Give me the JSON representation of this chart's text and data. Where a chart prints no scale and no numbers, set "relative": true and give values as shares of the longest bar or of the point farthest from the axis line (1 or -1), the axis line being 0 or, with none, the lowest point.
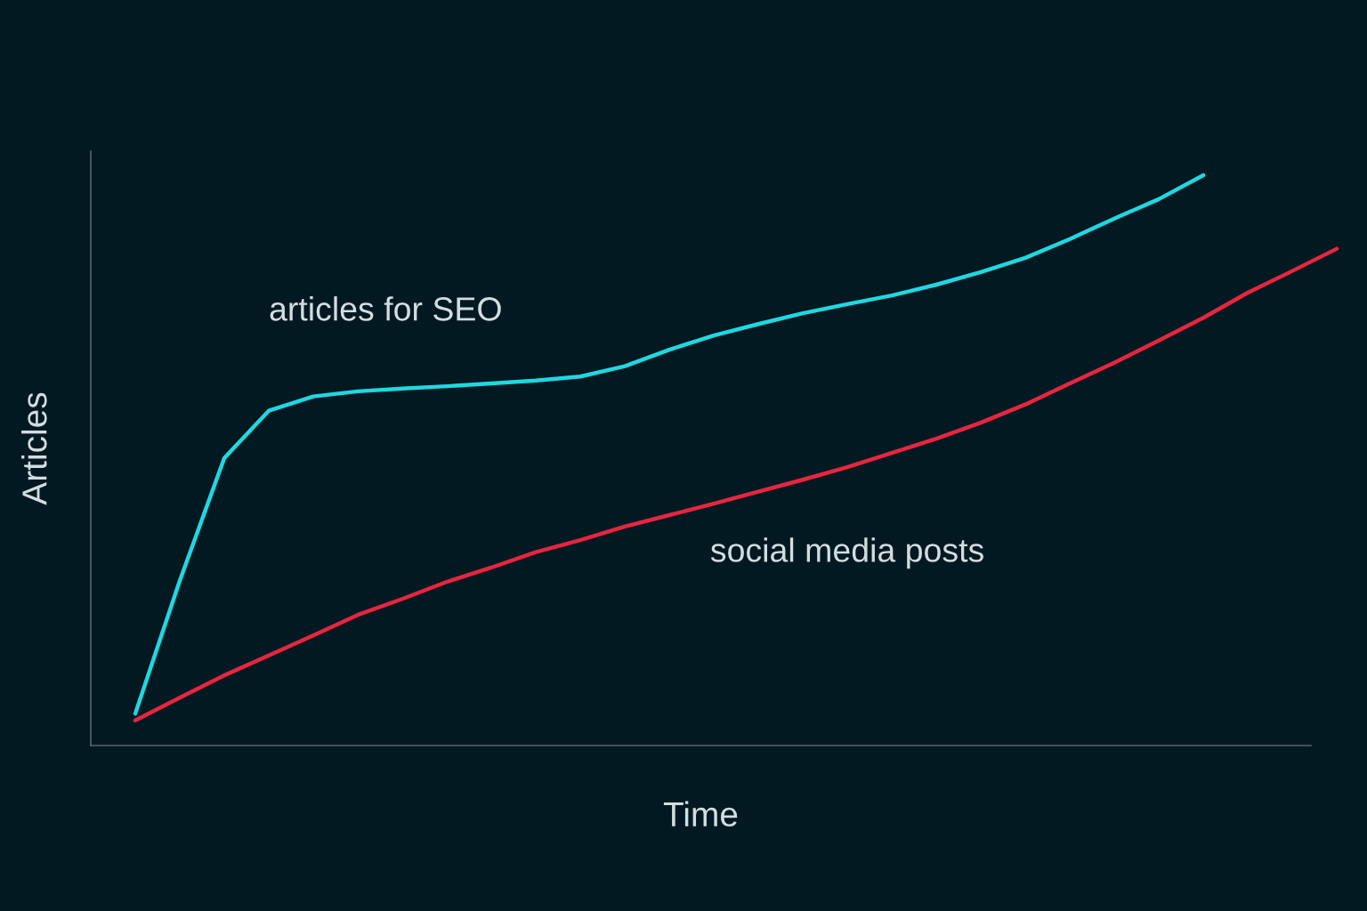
{
  "chart_data": {
    "type": "line",
    "relative": true,
    "xlabel": "Time",
    "ylabel": "Articles",
    "categories": [
      null,
      null,
      null,
      null,
      null,
      null,
      null,
      null,
      null,
      null,
      null,
      null,
      null,
      null,
      null,
      null,
      null,
      null,
      null,
      null,
      null,
      null,
      null,
      null,
      null,
      null,
      null,
      null
    ],
    "series": [
      {
        "name": "articles for SEO",
        "color": "#1fd8e0",
        "values": [
          0.056,
          0.289,
          0.504,
          0.587,
          0.612,
          0.621,
          0.626,
          0.63,
          0.635,
          0.64,
          0.647,
          0.665,
          0.694,
          0.719,
          0.739,
          0.758,
          0.774,
          0.789,
          0.808,
          0.83,
          0.855,
          0.888,
          0.924,
          0.958,
          1.0,
          null,
          null,
          null
        ]
      },
      {
        "name": "social media posts",
        "color": "#e8253f",
        "values": [
          0.044,
          0.084,
          0.123,
          0.158,
          0.193,
          0.229,
          0.257,
          0.287,
          0.312,
          0.339,
          0.36,
          0.384,
          0.404,
          0.424,
          0.445,
          0.466,
          0.488,
          0.513,
          0.538,
          0.566,
          0.598,
          0.635,
          0.671,
          0.71,
          0.75,
          0.794,
          0.832,
          0.871
        ]
      }
    ],
    "legend": false,
    "marker": "none",
    "line_style": "solid"
  }
}
